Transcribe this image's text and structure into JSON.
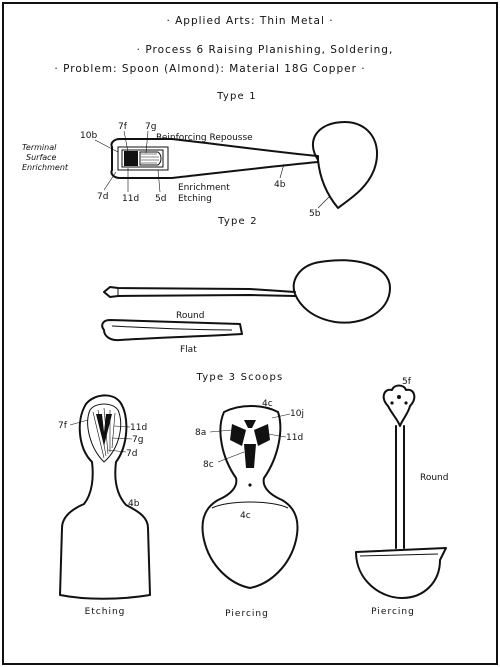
{
  "header": {
    "line1": "· Applied Arts: Thin Metal ·",
    "line2": "· Process 6 Raising   Planishing, Soldering,",
    "line3": "· Problem: Spoon (Almond): Material 18G Copper ·"
  },
  "type1": {
    "title": "Type 1",
    "note_lines": [
      "Terminal",
      "Surface",
      "Enrichment"
    ],
    "callouts": {
      "c10b": "10b",
      "c7f": "7f",
      "c7g": "7g",
      "reinforcing": "Reinforcing Repousse",
      "c7d": "7d",
      "c11d": "11d",
      "c5d": "5d",
      "enrichment": "Enrichment",
      "etching": "Etching",
      "c4b": "4b",
      "c5b": "5b"
    }
  },
  "type2": {
    "title": "Type 2",
    "round": "Round",
    "flat": "Flat"
  },
  "type3": {
    "title": "Type 3 Scoops",
    "s1": {
      "c7f": "7f",
      "c11d": "11d",
      "c7g": "7g",
      "c7d": "7d",
      "c4b": "4b",
      "caption": "Etching"
    },
    "s2": {
      "c4c_top": "4c",
      "c10j": "10j",
      "c8a": "8a",
      "c11d": "11d",
      "c8c": "8c",
      "c4c_bottom": "4c",
      "caption": "Piercing"
    },
    "s3": {
      "c5f": "5f",
      "round": "Round",
      "caption": "Piercing"
    }
  }
}
